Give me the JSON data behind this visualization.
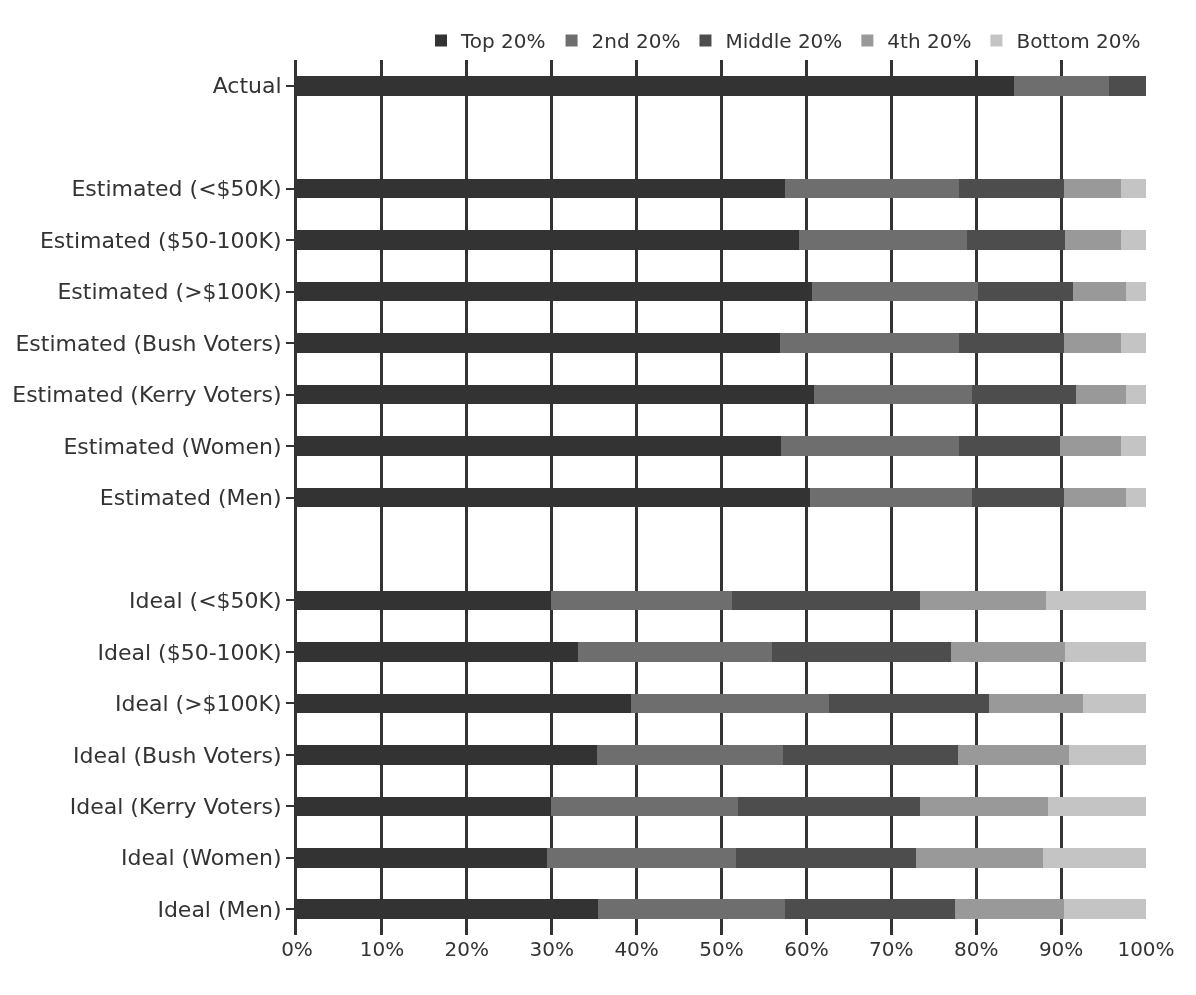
{
  "chart_data": {
    "type": "bar",
    "orientation": "horizontal",
    "stacked": true,
    "categories": [
      "Actual",
      null,
      "Estimated (<$50K)",
      "Estimated ($50-100K)",
      "Estimated (>$100K)",
      "Estimated (Bush Voters)",
      "Estimated (Kerry Voters)",
      "Estimated (Women)",
      "Estimated (Men)",
      null,
      "Ideal (<$50K)",
      "Ideal ($50-100K)",
      "Ideal (>$100K)",
      "Ideal (Bush Voters)",
      "Ideal (Kerry Voters)",
      "Ideal (Women)",
      "Ideal (Men)"
    ],
    "series": [
      {
        "name": "Top 20%",
        "color": "#333333",
        "values": [
          84.4,
          null,
          57.5,
          59.1,
          60.7,
          56.9,
          60.9,
          57.0,
          60.4,
          null,
          29.9,
          33.1,
          39.3,
          35.3,
          29.9,
          29.4,
          35.4
        ]
      },
      {
        "name": "2nd 20%",
        "color": "#6e6e6e",
        "values": [
          11.3,
          null,
          20.5,
          19.8,
          19.5,
          21.1,
          18.6,
          21.0,
          19.1,
          null,
          21.3,
          22.8,
          23.4,
          22.0,
          22.1,
          22.3,
          22.1
        ]
      },
      {
        "name": "Middle 20%",
        "color": "#4d4d4d",
        "values": [
          4.3,
          null,
          12.3,
          11.6,
          11.2,
          12.3,
          12.3,
          11.9,
          10.8,
          null,
          22.2,
          21.1,
          18.8,
          20.6,
          21.4,
          21.2,
          20.0
        ]
      },
      {
        "name": "4th 20%",
        "color": "#999999",
        "values": [
          null,
          null,
          6.8,
          6.6,
          6.2,
          6.8,
          5.8,
          7.2,
          7.3,
          null,
          14.8,
          13.5,
          11.1,
          13.0,
          15.0,
          15.0,
          12.8
        ]
      },
      {
        "name": "Bottom 20%",
        "color": "#c4c4c4",
        "values": [
          null,
          null,
          2.9,
          2.9,
          2.4,
          2.9,
          2.4,
          2.9,
          2.4,
          null,
          11.8,
          9.5,
          7.4,
          9.1,
          11.6,
          12.1,
          9.7
        ]
      }
    ],
    "xlim": [
      0,
      100
    ],
    "xticks": [
      {
        "value": 0,
        "label": "0%"
      },
      {
        "value": 10,
        "label": "10%"
      },
      {
        "value": 20,
        "label": "20%"
      },
      {
        "value": 30,
        "label": "30%"
      },
      {
        "value": 40,
        "label": "40%"
      },
      {
        "value": 50,
        "label": "50%"
      },
      {
        "value": 60,
        "label": "60%"
      },
      {
        "value": 70,
        "label": "70%"
      },
      {
        "value": 80,
        "label": "80%"
      },
      {
        "value": 90,
        "label": "90%"
      },
      {
        "value": 100,
        "label": "100%"
      }
    ],
    "grid": "x",
    "legend": "top"
  }
}
